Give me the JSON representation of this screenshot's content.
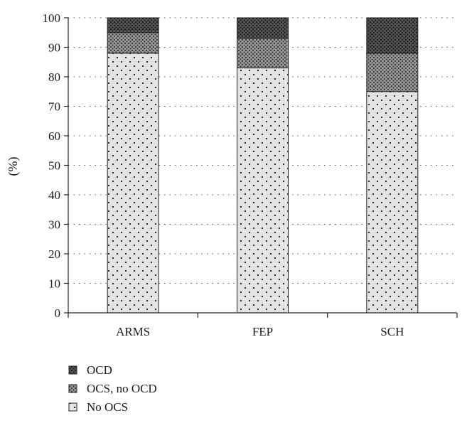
{
  "chart_data": {
    "type": "bar",
    "stacked": true,
    "title": "",
    "xlabel": "",
    "ylabel": "(%)",
    "ylim": [
      0,
      100
    ],
    "yticks": [
      0,
      10,
      20,
      30,
      40,
      50,
      60,
      70,
      80,
      90,
      100
    ],
    "categories": [
      "ARMS",
      "FEP",
      "SCH"
    ],
    "series": [
      {
        "name": "No OCS",
        "values": [
          88,
          83,
          75
        ],
        "pattern": "dots",
        "color": "#e3e3e3"
      },
      {
        "name": "OCS, no OCD",
        "values": [
          7,
          10,
          13
        ],
        "pattern": "crosshatch",
        "color": "#8e8e8e"
      },
      {
        "name": "OCD",
        "values": [
          5,
          7,
          12
        ],
        "pattern": "dark-crosshatch",
        "color": "#3c3c3c"
      }
    ],
    "legend_order": [
      "OCD",
      "OCS, no OCD",
      "No OCS"
    ],
    "legend_position": "bottom-left",
    "grid": "dotted horizontal"
  }
}
